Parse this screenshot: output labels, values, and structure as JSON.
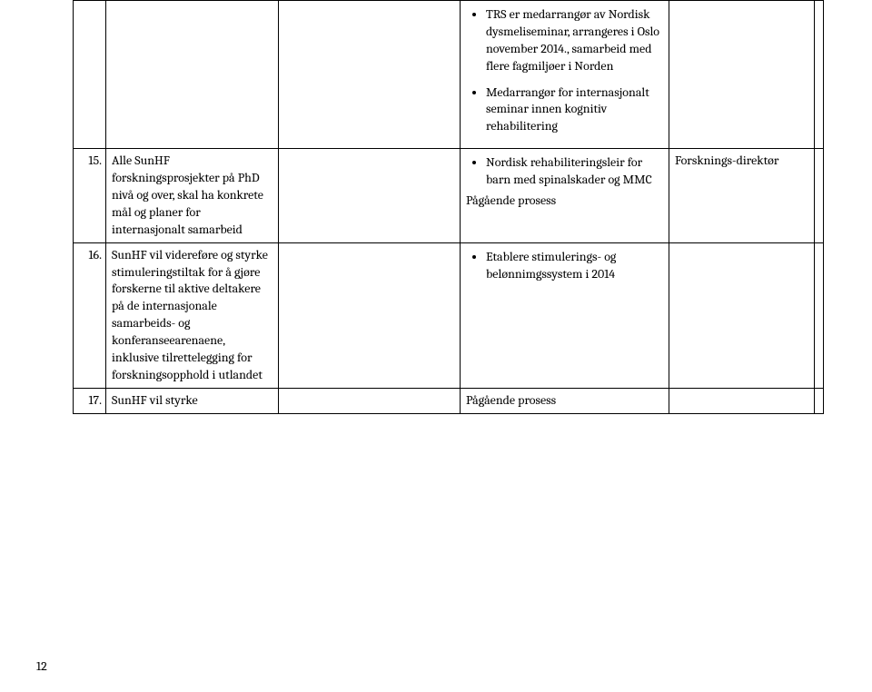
{
  "page_number": "12",
  "table": {
    "row1": {
      "col4_bullets": [
        "TRS er medarrangør av Nordisk dysmeliseminar, arrangeres i Oslo november 2014., samarbeid med flere fagmiljøer i Norden",
        "Medarrangør for internasjonalt seminar innen kognitiv rehabilitering"
      ]
    },
    "rows": [
      {
        "num": "15.",
        "col2": "Alle SunHF forskningsprosjekter på PhD nivå og over, skal ha konkrete mål og planer for internasjonalt samarbeid",
        "col4_lead_bullet": "Nordisk rehabiliteringsleir for barn med spinalskader og MMC",
        "col4_text": "Pågående prosess",
        "col5": "Forsknings-direktør"
      },
      {
        "num": "16.",
        "col2": "SunHF vil videreføre og styrke stimuleringstiltak for å gjøre forskerne til aktive deltakere på de internasjonale samarbeids- og konferanseearenaene, inklusive tilrettelegging for forskningsopphold i utlandet",
        "col4_bullet": "Etablere stimulerings- og belønnimgssystem i 2014"
      },
      {
        "num": "17.",
        "col2": "SunHF vil styrke",
        "col4_text": "Pågående prosess"
      }
    ]
  }
}
